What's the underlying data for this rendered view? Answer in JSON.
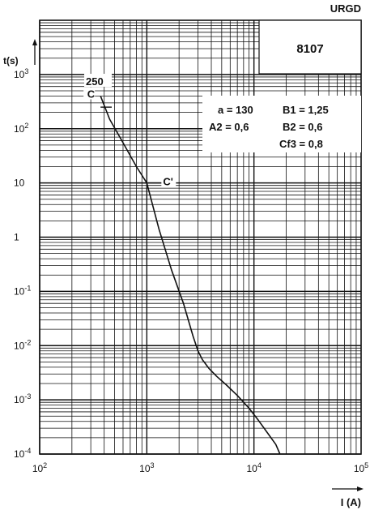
{
  "chart_data": {
    "type": "line",
    "code": "URGD",
    "reference": "8107",
    "xlabel": "I (A)",
    "ylabel": "t(s)",
    "xscale": "log",
    "yscale": "log",
    "xlim": [
      100,
      100000
    ],
    "ylim": [
      0.0001,
      10000
    ],
    "grid": true,
    "x_ticks": [
      {
        "value": 100,
        "label": "10",
        "exp": "2"
      },
      {
        "value": 1000,
        "label": "10",
        "exp": "3"
      },
      {
        "value": 10000,
        "label": "10",
        "exp": "4"
      },
      {
        "value": 100000,
        "label": "10",
        "exp": "5"
      }
    ],
    "y_ticks": [
      {
        "value": 1000,
        "label": "10",
        "exp": "3"
      },
      {
        "value": 100,
        "label": "10",
        "exp": "2"
      },
      {
        "value": 10,
        "label": "10",
        "exp": ""
      },
      {
        "value": 1,
        "label": "1",
        "exp": ""
      },
      {
        "value": 0.1,
        "label": "10",
        "exp": "-1"
      },
      {
        "value": 0.01,
        "label": "10",
        "exp": "-2"
      },
      {
        "value": 0.001,
        "label": "10",
        "exp": "-3"
      },
      {
        "value": 0.0001,
        "label": "10",
        "exp": "-4"
      }
    ],
    "marker_250": {
      "label": "250",
      "y": 250
    },
    "series": [
      {
        "x": [
          370,
          450,
          600,
          800,
          1000,
          1300,
          1700,
          2200,
          2700,
          3000,
          3300,
          3800,
          4500,
          5500,
          7000,
          9000,
          11000,
          13500,
          16000,
          17500
        ],
        "y": [
          400,
          150,
          55,
          20,
          10,
          1.4,
          0.25,
          0.06,
          0.015,
          0.008,
          0.0055,
          0.0038,
          0.0027,
          0.0019,
          0.0012,
          0.0007,
          0.00042,
          0.00024,
          0.00015,
          0.0001
        ]
      }
    ],
    "points": [
      {
        "label": "C",
        "x": 370,
        "y": 400
      },
      {
        "label": "C'",
        "x": 1000,
        "y": 10
      }
    ],
    "annotations": [
      {
        "text": "a = 130"
      },
      {
        "text": "B1 = 1,25"
      },
      {
        "text": "A2 = 0,6"
      },
      {
        "text": "B2 = 0,6"
      },
      {
        "text": "Cf3 = 0,8"
      }
    ]
  }
}
